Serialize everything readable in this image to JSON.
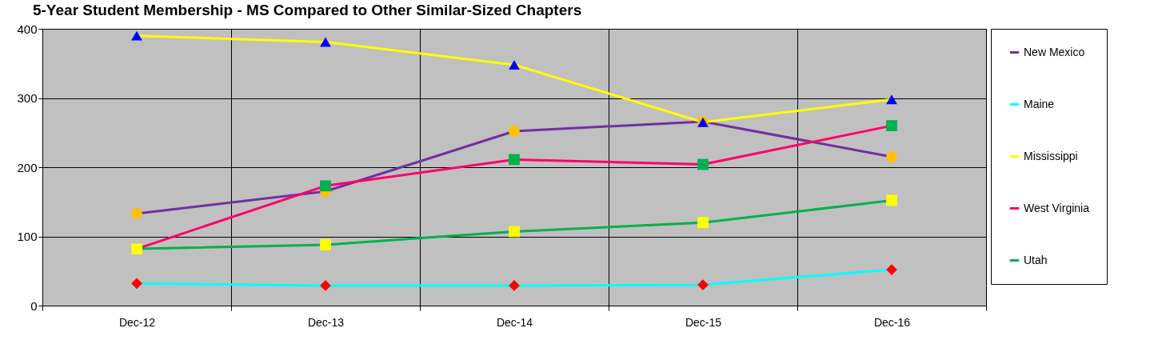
{
  "chart_data": {
    "type": "line",
    "title": "5-Year Student Membership - MS Compared to Other Similar-Sized Chapters",
    "categories": [
      "Dec-12",
      "Dec-13",
      "Dec-14",
      "Dec-15",
      "Dec-16"
    ],
    "series": [
      {
        "name": "New Mexico",
        "color": "#7030a0",
        "marker": "circle",
        "colors": [
          "#ffc000",
          "#ffc000",
          "#ffc000",
          "#ffc000",
          "#ffc000"
        ],
        "values": [
          133,
          165,
          252,
          266,
          215
        ]
      },
      {
        "name": "Maine",
        "color": "#00ffff",
        "marker": "diamond",
        "colors": [
          "#ff0000",
          "#ff0000",
          "#ff0000",
          "#ff0000",
          "#ff0000"
        ],
        "values": [
          32,
          29,
          29,
          30,
          52
        ]
      },
      {
        "name": "Mississippi",
        "color": "#ffff00",
        "marker": "triangle",
        "colors": [
          "#0000ff",
          "#0000ff",
          "#0000ff",
          "#0000ff",
          "#0000ff"
        ],
        "values": [
          390,
          381,
          348,
          265,
          298
        ]
      },
      {
        "name": "West Virginia",
        "color": "#ff0066",
        "marker": "square",
        "colors": [
          "#00b050",
          "#00b050",
          "#00b050",
          "#00b050",
          "#00b050"
        ],
        "values": [
          82,
          173,
          211,
          204,
          260
        ]
      },
      {
        "name": "Utah",
        "color": "#00b050",
        "marker": "square",
        "colors": [
          "#ffff00",
          "#ffff00",
          "#ffff00",
          "#ffff00",
          "#ffff00"
        ],
        "values": [
          82,
          88,
          107,
          120,
          152
        ]
      }
    ],
    "ylim": [
      0,
      400
    ],
    "yticks": [
      0,
      100,
      200,
      300,
      400
    ],
    "grid": true,
    "legend": "right",
    "line_style": "solid"
  }
}
